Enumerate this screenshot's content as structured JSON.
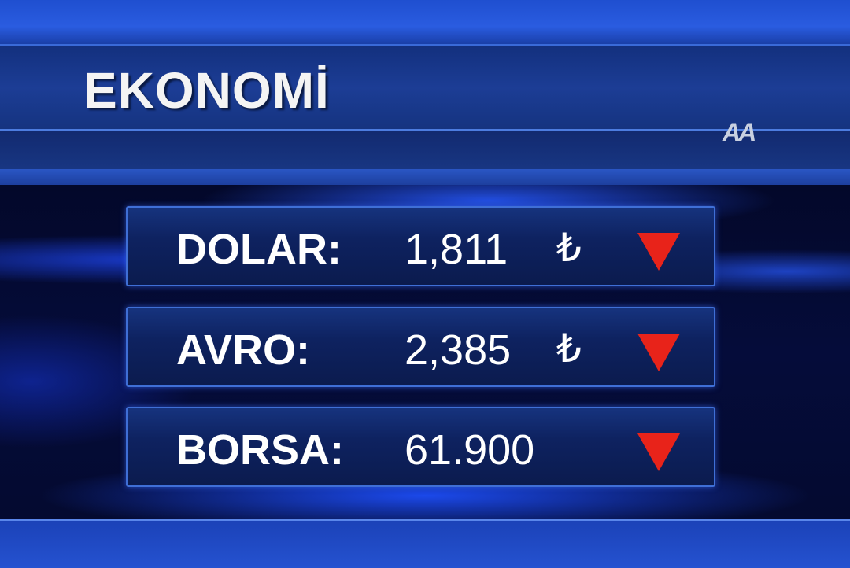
{
  "header": {
    "title": "EKONOMİ",
    "logo": "AA"
  },
  "rows": [
    {
      "label": "DOLAR:",
      "value": "1,811",
      "currency": "₺",
      "trend": "down",
      "trend_icon": "down-triangle-icon"
    },
    {
      "label": "AVRO:",
      "value": "2,385",
      "currency": "₺",
      "trend": "down",
      "trend_icon": "down-triangle-icon"
    },
    {
      "label": "BORSA:",
      "value": "61.900",
      "currency": "",
      "trend": "down",
      "trend_icon": "down-triangle-icon"
    }
  ],
  "colors": {
    "trend_down": "#e8231a",
    "panel": "#0e2260",
    "accent": "#2a5ce0"
  }
}
